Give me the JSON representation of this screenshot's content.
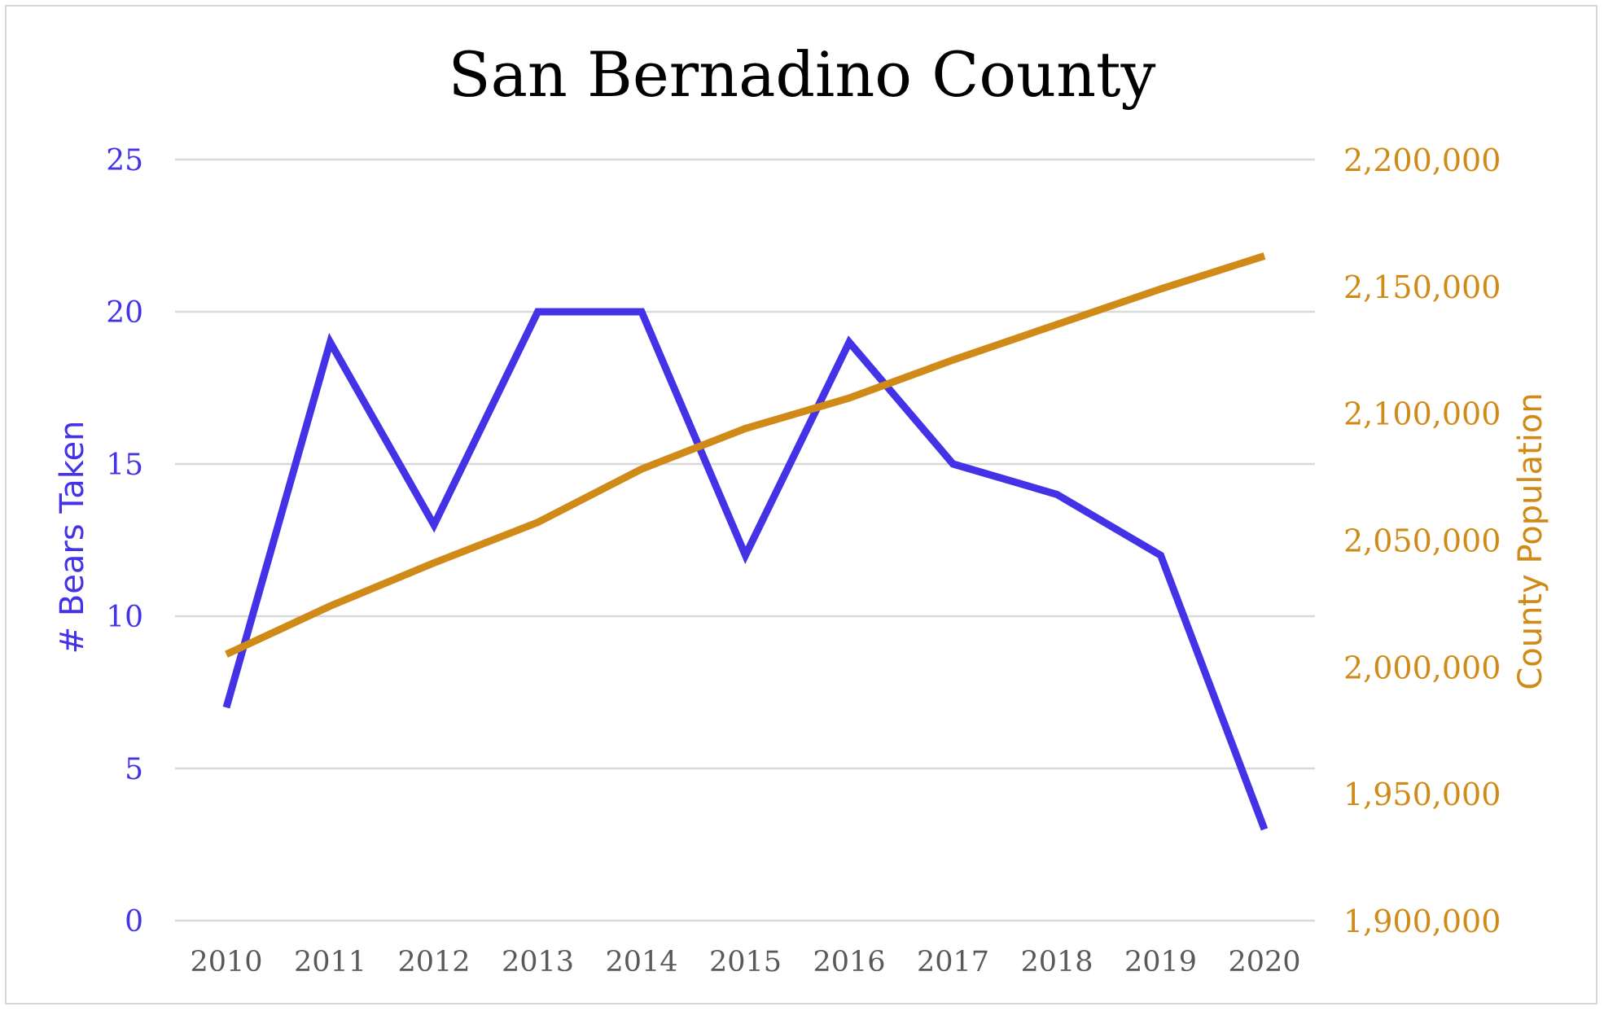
{
  "chart_data": {
    "type": "line",
    "title": "San Bernadino County",
    "x": [
      "2010",
      "2011",
      "2012",
      "2013",
      "2014",
      "2015",
      "2016",
      "2017",
      "2018",
      "2019",
      "2020"
    ],
    "series": [
      {
        "name": "# Bears Taken",
        "axis": "left",
        "color": "#4433e6",
        "values": [
          7,
          19,
          13,
          20,
          20,
          12,
          19,
          15,
          14,
          12,
          3
        ]
      },
      {
        "name": "County Population",
        "axis": "right",
        "color": "#d08a17",
        "values": [
          2005000,
          2024000,
          2041000,
          2057000,
          2078000,
          2094000,
          2106000,
          2121000,
          2135000,
          2149000,
          2162000
        ]
      }
    ],
    "ylabel": "# Bears Taken",
    "y2label": "County Population",
    "ylim": [
      0,
      25
    ],
    "y2lim": [
      1900000,
      2200000
    ],
    "yticks": [
      "0",
      "5",
      "10",
      "15",
      "20",
      "25"
    ],
    "y2ticks": [
      "1,900,000",
      "1,950,000",
      "2,000,000",
      "2,050,000",
      "2,100,000",
      "2,150,000",
      "2,200,000"
    ],
    "grid": true,
    "legend": "none"
  }
}
